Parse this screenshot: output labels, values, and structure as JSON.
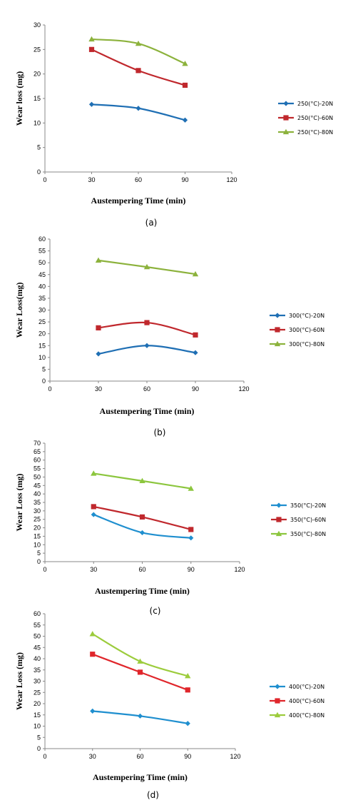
{
  "chart_data": [
    {
      "type": "line",
      "caption": "(a)",
      "xlabel": "Austempering Time (min)",
      "ylabel": "Wear loss (mg)",
      "xlim": [
        0,
        120
      ],
      "xticks": [
        0,
        30,
        60,
        90,
        120
      ],
      "ylim": [
        0,
        30
      ],
      "yticks": [
        0,
        5,
        10,
        15,
        20,
        25,
        30
      ],
      "x": [
        30,
        60,
        90
      ],
      "series": [
        {
          "name": "250(°C)-20N",
          "values": [
            13.8,
            13.0,
            10.6
          ],
          "color": "#1f6fb4",
          "marker": "diamond"
        },
        {
          "name": "250(°C)-60N",
          "values": [
            25.0,
            20.7,
            17.7
          ],
          "color": "#c0282d",
          "marker": "square"
        },
        {
          "name": "250(°C)-80N",
          "values": [
            27.1,
            26.2,
            22.1
          ],
          "color": "#8cb23c",
          "marker": "triangle"
        }
      ],
      "legend_position": "right"
    },
    {
      "type": "line",
      "caption": "(b)",
      "xlabel": "Austempering Time (min)",
      "ylabel": "Wear Loss(mg)",
      "xlim": [
        0,
        120
      ],
      "xticks": [
        0,
        30,
        60,
        90,
        120
      ],
      "ylim": [
        0,
        60
      ],
      "yticks": [
        0,
        5,
        10,
        15,
        20,
        25,
        30,
        35,
        40,
        45,
        50,
        55,
        60
      ],
      "x": [
        30,
        60,
        90
      ],
      "series": [
        {
          "name": "300(°C)-20N",
          "values": [
            11.5,
            15.0,
            12.0
          ],
          "color": "#1f6fb4",
          "marker": "diamond"
        },
        {
          "name": "300(°C)-60N",
          "values": [
            22.5,
            24.7,
            19.5
          ],
          "color": "#c0282d",
          "marker": "square"
        },
        {
          "name": "300(°C)-80N",
          "values": [
            51.0,
            48.2,
            45.2
          ],
          "color": "#8cb23c",
          "marker": "triangle"
        }
      ],
      "legend_position": "right"
    },
    {
      "type": "line",
      "caption": "(c)",
      "xlabel": "Austempering Time (min)",
      "ylabel": "Wear Loss (mg)",
      "xlim": [
        0,
        120
      ],
      "xticks": [
        0,
        30,
        60,
        90,
        120
      ],
      "ylim": [
        0,
        70
      ],
      "yticks": [
        0,
        5,
        10,
        15,
        20,
        25,
        30,
        35,
        40,
        45,
        50,
        55,
        60,
        65,
        70
      ],
      "x": [
        30,
        60,
        90
      ],
      "series": [
        {
          "name": "350(°C)-20N",
          "values": [
            27.8,
            17.1,
            14.0
          ],
          "color": "#1f8fcf",
          "marker": "diamond"
        },
        {
          "name": "350(°C)-60N",
          "values": [
            32.5,
            26.4,
            19.0
          ],
          "color": "#c0282d",
          "marker": "square"
        },
        {
          "name": "350(°C)-80N",
          "values": [
            52.1,
            47.7,
            43.2
          ],
          "color": "#8cc63e",
          "marker": "triangle"
        }
      ],
      "legend_position": "right"
    },
    {
      "type": "line",
      "caption": "(d)",
      "xlabel": "Austempering Time (min)",
      "ylabel": "Wear Loss (mg)",
      "xlim": [
        0,
        120
      ],
      "xticks": [
        0,
        30,
        60,
        90,
        120
      ],
      "ylim": [
        0,
        60
      ],
      "yticks": [
        0,
        5,
        10,
        15,
        20,
        25,
        30,
        35,
        40,
        45,
        50,
        55,
        60
      ],
      "x": [
        30,
        60,
        90
      ],
      "series": [
        {
          "name": "400(°C)-20N",
          "values": [
            16.7,
            14.5,
            11.2
          ],
          "color": "#1f8fcf",
          "marker": "diamond"
        },
        {
          "name": "400(°C)-60N",
          "values": [
            42.0,
            34.0,
            26.1
          ],
          "color": "#e0262b",
          "marker": "square"
        },
        {
          "name": "400(°C)-80N",
          "values": [
            51.0,
            38.8,
            32.3
          ],
          "color": "#9ccc3c",
          "marker": "triangle"
        }
      ],
      "legend_position": "right"
    }
  ]
}
